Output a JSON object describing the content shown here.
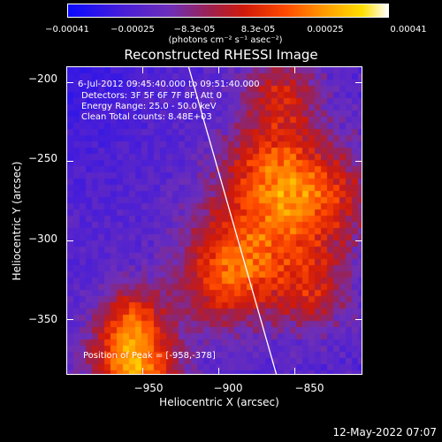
{
  "colorbar": {
    "ticks": [
      "-0.00041",
      "-0.00025",
      "-8.3e-05",
      "8.3e-05",
      "0.00025",
      "0.00041"
    ],
    "units": "(photons cm⁻² s⁻¹ asec⁻²)"
  },
  "info": {
    "time_range": "6-Jul-2012 09:45:40.000 to 09:51:40.000",
    "detectors": "Detectors: 3F 5F 6F 7F 8F, Att 0",
    "energy": "Energy Range: 25.0 - 50.0 keV",
    "clean": "Clean     Total counts: 8.48E+03",
    "peak": "Position of Peak = [-958,-378]"
  },
  "footer": "12-May-2022 07:07",
  "chart_data": {
    "type": "heatmap",
    "title": "Reconstructed RHESSI Image",
    "xlabel": "Heliocentric X (arcsec)",
    "ylabel": "Heliocentric Y (arcsec)",
    "xlim": [
      -1000,
      -805
    ],
    "ylim": [
      -385,
      -190
    ],
    "xticks": [
      -950,
      -900,
      -850
    ],
    "yticks": [
      -200,
      -250,
      -300,
      -350
    ],
    "colorbar_range": [
      -0.00041,
      0.00041
    ],
    "limb_line": {
      "x": [
        -920,
        -862
      ],
      "y": [
        -190,
        -385
      ]
    },
    "peak_position": [
      -958,
      -378
    ],
    "colors": {
      "low": "#0a0aff",
      "mid": "#d01a0a",
      "high": "#ffffff"
    }
  }
}
